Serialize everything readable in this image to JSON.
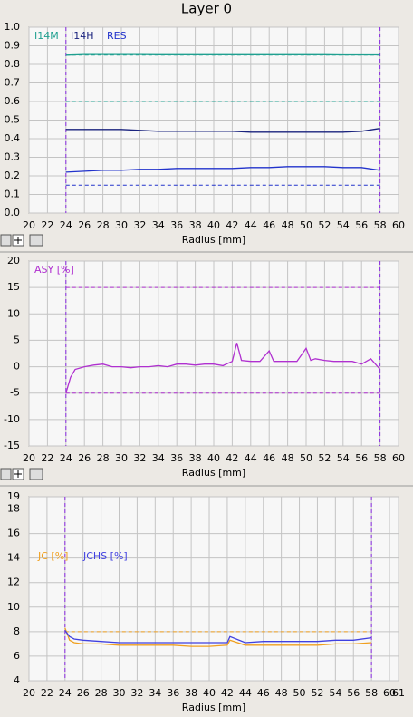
{
  "title": "Layer 0",
  "chart_data": [
    {
      "type": "line",
      "x_label": "Radius [mm]",
      "xlim": [
        20,
        60
      ],
      "xticks": [
        20,
        22,
        24,
        26,
        28,
        30,
        32,
        34,
        36,
        38,
        40,
        42,
        44,
        46,
        48,
        50,
        52,
        54,
        56,
        58,
        60
      ],
      "ylim": [
        0,
        1
      ],
      "yticks": [
        {
          "value": 0,
          "label": "0.0"
        },
        0.1,
        0.2,
        0.3,
        0.4,
        0.5,
        0.6,
        0.7,
        0.8,
        0.9,
        {
          "value": 1,
          "label": "1.0"
        }
      ],
      "grid": true,
      "x": [
        24,
        26,
        28,
        30,
        32,
        34,
        36,
        38,
        40,
        42,
        44,
        46,
        48,
        50,
        52,
        54,
        56,
        58
      ],
      "series": [
        {
          "name": "I14M",
          "color": "#20a090",
          "values": [
            0.85,
            0.853,
            0.853,
            0.853,
            0.853,
            0.852,
            0.852,
            0.852,
            0.852,
            0.852,
            0.852,
            0.852,
            0.852,
            0.852,
            0.852,
            0.851,
            0.851,
            0.851
          ]
        },
        {
          "name": "I14H",
          "color": "#1a237e",
          "values": [
            0.45,
            0.45,
            0.45,
            0.45,
            0.445,
            0.44,
            0.44,
            0.44,
            0.44,
            0.44,
            0.435,
            0.435,
            0.435,
            0.435,
            0.435,
            0.435,
            0.44,
            0.455
          ]
        },
        {
          "name": "RES",
          "color": "#2233cc",
          "values": [
            0.22,
            0.225,
            0.23,
            0.23,
            0.235,
            0.235,
            0.24,
            0.24,
            0.24,
            0.24,
            0.245,
            0.245,
            0.25,
            0.25,
            0.25,
            0.245,
            0.245,
            0.23
          ]
        }
      ],
      "limit_lines": [
        {
          "value": 0.85,
          "color": "#20a090"
        },
        {
          "value": 0.6,
          "color": "#20a090"
        },
        {
          "value": 0.15,
          "color": "#2233cc"
        }
      ],
      "marker_lines_x": [
        24,
        58
      ],
      "marker_color": "#8a2be2"
    },
    {
      "type": "line",
      "x_label": "Radius [mm]",
      "xlim": [
        20,
        60
      ],
      "xticks": [
        20,
        22,
        24,
        26,
        28,
        30,
        32,
        34,
        36,
        38,
        40,
        42,
        44,
        46,
        48,
        50,
        52,
        54,
        56,
        58,
        60
      ],
      "ylim": [
        -15,
        20
      ],
      "yticks": [
        -15,
        -10,
        -5,
        0,
        5,
        10,
        15,
        20
      ],
      "grid": true,
      "x": [
        24,
        24.5,
        25,
        26,
        27,
        28,
        29,
        30,
        31,
        32,
        33,
        34,
        35,
        36,
        37,
        38,
        39,
        40,
        41,
        42,
        42.5,
        43,
        44,
        45,
        46,
        46.5,
        47,
        48,
        49,
        50,
        50.5,
        51,
        52,
        53,
        54,
        55,
        56,
        57,
        57.5,
        58
      ],
      "series": [
        {
          "name": "ASY [%]",
          "color": "#b030d0",
          "values": [
            -5,
            -2,
            -0.5,
            0,
            0.3,
            0.5,
            0,
            0,
            -0.2,
            0,
            0,
            0.2,
            0,
            0.5,
            0.5,
            0.3,
            0.5,
            0.5,
            0.2,
            1,
            4.5,
            1.2,
            1,
            1,
            3,
            1,
            1,
            1,
            1,
            3.5,
            1.2,
            1.5,
            1.2,
            1,
            1,
            1,
            0.5,
            1.5,
            0.5,
            -0.5
          ]
        }
      ],
      "limit_lines": [
        {
          "value": 15,
          "color": "#b030d0"
        },
        {
          "value": -5,
          "color": "#b030d0"
        }
      ],
      "marker_lines_x": [
        24,
        58
      ],
      "marker_color": "#8a2be2"
    },
    {
      "type": "line",
      "x_label": "Radius [mm]",
      "xlim": [
        20,
        61
      ],
      "xticks": [
        20,
        22,
        24,
        26,
        28,
        30,
        32,
        34,
        36,
        38,
        40,
        42,
        44,
        46,
        48,
        50,
        52,
        54,
        56,
        58,
        60,
        61
      ],
      "ylim": [
        4,
        19
      ],
      "yticks": [
        4,
        6,
        8,
        10,
        12,
        14,
        16,
        18,
        19
      ],
      "grid": true,
      "x": [
        24,
        24.5,
        25,
        26,
        28,
        30,
        32,
        34,
        36,
        38,
        40,
        42,
        42.3,
        44,
        46,
        48,
        50,
        52,
        54,
        56,
        58
      ],
      "series": [
        {
          "name": "JC [%]",
          "color": "#f0a020",
          "values": [
            8.3,
            7.3,
            7.1,
            7,
            7,
            6.9,
            6.9,
            6.9,
            6.9,
            6.8,
            6.8,
            6.9,
            7.3,
            6.9,
            6.9,
            6.9,
            6.9,
            6.9,
            7,
            7,
            7.1
          ]
        },
        {
          "name": "JCHS [%]",
          "color": "#4040e0",
          "values": [
            8.1,
            7.6,
            7.4,
            7.3,
            7.2,
            7.1,
            7.1,
            7.1,
            7.1,
            7.1,
            7.1,
            7.1,
            7.6,
            7.1,
            7.2,
            7.2,
            7.2,
            7.2,
            7.3,
            7.3,
            7.5
          ]
        }
      ],
      "limit_lines": [
        {
          "value": 8,
          "color": "#f0a020"
        }
      ],
      "marker_lines_x": [
        24,
        58
      ],
      "marker_color": "#8a2be2"
    }
  ]
}
